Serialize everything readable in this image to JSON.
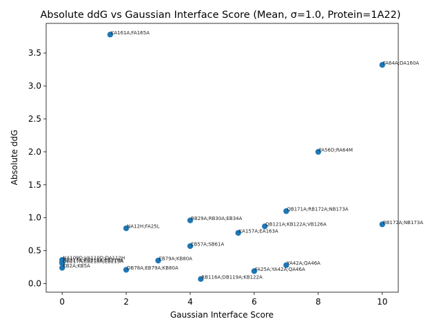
{
  "chart_data": {
    "type": "scatter",
    "title": "Absolute ddG vs Gaussian Interface Score (Mean, σ=1.0, Protein=1A22)",
    "xlabel": "Gaussian Interface Score",
    "ylabel": "Absolute ddG",
    "xlim": [
      -0.5,
      10.5
    ],
    "ylim": [
      -0.13,
      3.95
    ],
    "xticks": [
      0,
      2,
      4,
      6,
      8,
      10
    ],
    "yticks": [
      0.0,
      0.5,
      1.0,
      1.5,
      2.0,
      2.5,
      3.0,
      3.5
    ],
    "grid": false,
    "marker_color": "#1f77b4",
    "points": [
      {
        "x": 1.5,
        "y": 3.78,
        "label": "KA161A;FA165A"
      },
      {
        "x": 10.0,
        "y": 3.32,
        "label": "FA64A;DA160A"
      },
      {
        "x": 8.0,
        "y": 2.0,
        "label": "FA56D;RA64M"
      },
      {
        "x": 7.0,
        "y": 1.1,
        "label": "QB171A;RB172A;NB173A"
      },
      {
        "x": 10.0,
        "y": 0.9,
        "label": "RB172A;NB173A"
      },
      {
        "x": 4.0,
        "y": 0.96,
        "label": "RB29A;RB30A;EB34A"
      },
      {
        "x": 6.33,
        "y": 0.87,
        "label": "QB121A;KB122A;VB126A"
      },
      {
        "x": 5.5,
        "y": 0.77,
        "label": "KA157A;EA163A"
      },
      {
        "x": 2.0,
        "y": 0.84,
        "label": "NA12H;FA25L"
      },
      {
        "x": 4.0,
        "y": 0.57,
        "label": "EB57A;SB61A"
      },
      {
        "x": 0.0,
        "y": 0.36,
        "label": "NA109D;VA110D;DA112H"
      },
      {
        "x": 0.0,
        "y": 0.33,
        "label": "RB217A;RB218A;EB219A"
      },
      {
        "x": 0.0,
        "y": 0.31,
        "label": "DB217A;EB218A;EB219A"
      },
      {
        "x": 0.0,
        "y": 0.24,
        "label": "KB2A;KB5A"
      },
      {
        "x": 3.0,
        "y": 0.35,
        "label": "EB79A;KB80A"
      },
      {
        "x": 2.0,
        "y": 0.21,
        "label": "DB78A;EB79A;KB80A"
      },
      {
        "x": 4.33,
        "y": 0.07,
        "label": "RB116A;DB119A;KB122A"
      },
      {
        "x": 6.0,
        "y": 0.19,
        "label": "FA25A;YA42A;QA46A"
      },
      {
        "x": 7.0,
        "y": 0.28,
        "label": "YA42A;QA46A"
      }
    ]
  }
}
